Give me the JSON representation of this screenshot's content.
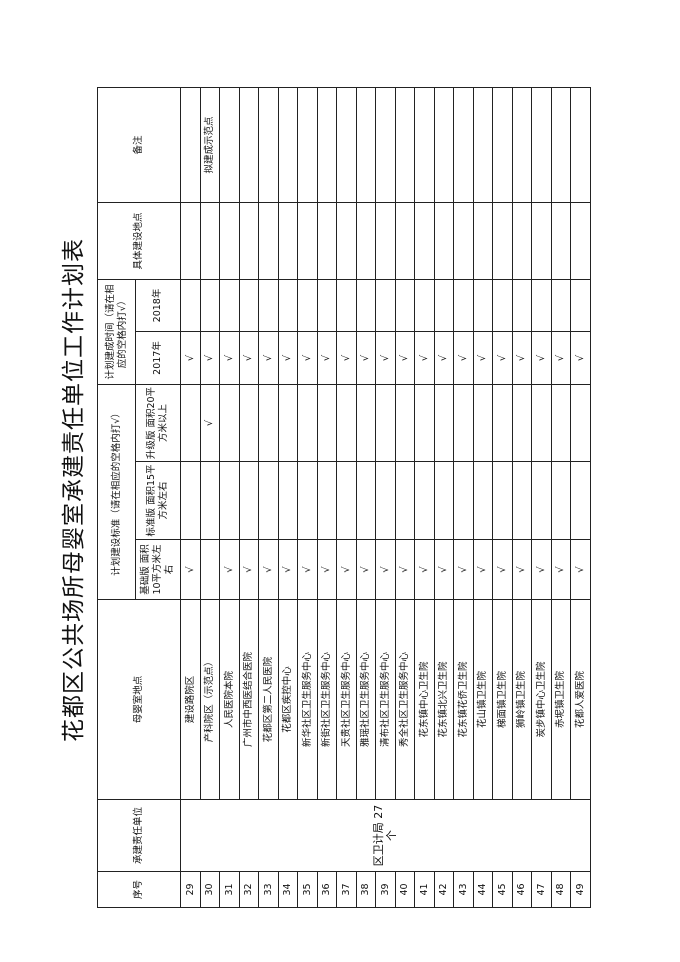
{
  "title": "花都区公共场所母婴室承建责任单位工作计划表",
  "headers": {
    "seq": "序号",
    "unit": "承建责任单位",
    "location": "母婴室地点",
    "standard_group": "计划建设标准（请在相应的空格内打√）",
    "basic": "基础版 面积10平方米左右",
    "standard": "标准版 面积15平方米左右",
    "upgrade": "升级版 面积20平方米以上",
    "time_group": "计划建成时间（请在相应的空格内打√）",
    "y2017": "2017年",
    "y2018": "2018年",
    "site": "具体建设地点",
    "remark": "备注"
  },
  "unit_merged": "区卫计局 27个",
  "check_mark": "√",
  "rows": [
    {
      "seq": "29",
      "location": "建设路院区",
      "basic": true,
      "standard": false,
      "upgrade": false,
      "y2017": true,
      "y2018": false,
      "site": "",
      "remark": ""
    },
    {
      "seq": "30",
      "location": "产科院区（示范点）",
      "basic": false,
      "standard": false,
      "upgrade": true,
      "y2017": true,
      "y2018": false,
      "site": "",
      "remark": "拟建成示范点"
    },
    {
      "seq": "31",
      "location": "人民医院本院",
      "basic": true,
      "standard": false,
      "upgrade": false,
      "y2017": true,
      "y2018": false,
      "site": "",
      "remark": ""
    },
    {
      "seq": "32",
      "location": "广州市中西医结合医院",
      "basic": true,
      "standard": false,
      "upgrade": false,
      "y2017": true,
      "y2018": false,
      "site": "",
      "remark": ""
    },
    {
      "seq": "33",
      "location": "花都区第二人民医院",
      "basic": true,
      "standard": false,
      "upgrade": false,
      "y2017": true,
      "y2018": false,
      "site": "",
      "remark": ""
    },
    {
      "seq": "34",
      "location": "花都区疾控中心",
      "basic": true,
      "standard": false,
      "upgrade": false,
      "y2017": true,
      "y2018": false,
      "site": "",
      "remark": ""
    },
    {
      "seq": "35",
      "location": "新华社区卫生服务中心",
      "basic": true,
      "standard": false,
      "upgrade": false,
      "y2017": true,
      "y2018": false,
      "site": "",
      "remark": ""
    },
    {
      "seq": "36",
      "location": "新街社区卫生服务中心",
      "basic": true,
      "standard": false,
      "upgrade": false,
      "y2017": true,
      "y2018": false,
      "site": "",
      "remark": ""
    },
    {
      "seq": "37",
      "location": "天贵社区卫生服务中心",
      "basic": true,
      "standard": false,
      "upgrade": false,
      "y2017": true,
      "y2018": false,
      "site": "",
      "remark": ""
    },
    {
      "seq": "38",
      "location": "雅瑶社区卫生服务中心",
      "basic": true,
      "standard": false,
      "upgrade": false,
      "y2017": true,
      "y2018": false,
      "site": "",
      "remark": ""
    },
    {
      "seq": "39",
      "location": "清布社区卫生服务中心",
      "basic": true,
      "standard": false,
      "upgrade": false,
      "y2017": true,
      "y2018": false,
      "site": "",
      "remark": ""
    },
    {
      "seq": "40",
      "location": "秀全社区卫生服务中心",
      "basic": true,
      "standard": false,
      "upgrade": false,
      "y2017": true,
      "y2018": false,
      "site": "",
      "remark": ""
    },
    {
      "seq": "41",
      "location": "花东镇中心卫生院",
      "basic": true,
      "standard": false,
      "upgrade": false,
      "y2017": true,
      "y2018": false,
      "site": "",
      "remark": ""
    },
    {
      "seq": "42",
      "location": "花东镇北兴卫生院",
      "basic": true,
      "standard": false,
      "upgrade": false,
      "y2017": true,
      "y2018": false,
      "site": "",
      "remark": ""
    },
    {
      "seq": "43",
      "location": "花东镇花侨卫生院",
      "basic": true,
      "standard": false,
      "upgrade": false,
      "y2017": true,
      "y2018": false,
      "site": "",
      "remark": ""
    },
    {
      "seq": "44",
      "location": "花山镇卫生院",
      "basic": true,
      "standard": false,
      "upgrade": false,
      "y2017": true,
      "y2018": false,
      "site": "",
      "remark": ""
    },
    {
      "seq": "45",
      "location": "梯面镇卫生院",
      "basic": true,
      "standard": false,
      "upgrade": false,
      "y2017": true,
      "y2018": false,
      "site": "",
      "remark": ""
    },
    {
      "seq": "46",
      "location": "狮岭镇卫生院",
      "basic": true,
      "standard": false,
      "upgrade": false,
      "y2017": true,
      "y2018": false,
      "site": "",
      "remark": ""
    },
    {
      "seq": "47",
      "location": "炭步镇中心卫生院",
      "basic": true,
      "standard": false,
      "upgrade": false,
      "y2017": true,
      "y2018": false,
      "site": "",
      "remark": ""
    },
    {
      "seq": "48",
      "location": "赤坭镇卫生院",
      "basic": true,
      "standard": false,
      "upgrade": false,
      "y2017": true,
      "y2018": false,
      "site": "",
      "remark": ""
    },
    {
      "seq": "49",
      "location": "花都人爱医院",
      "basic": true,
      "standard": false,
      "upgrade": false,
      "y2017": true,
      "y2018": false,
      "site": "",
      "remark": ""
    }
  ]
}
